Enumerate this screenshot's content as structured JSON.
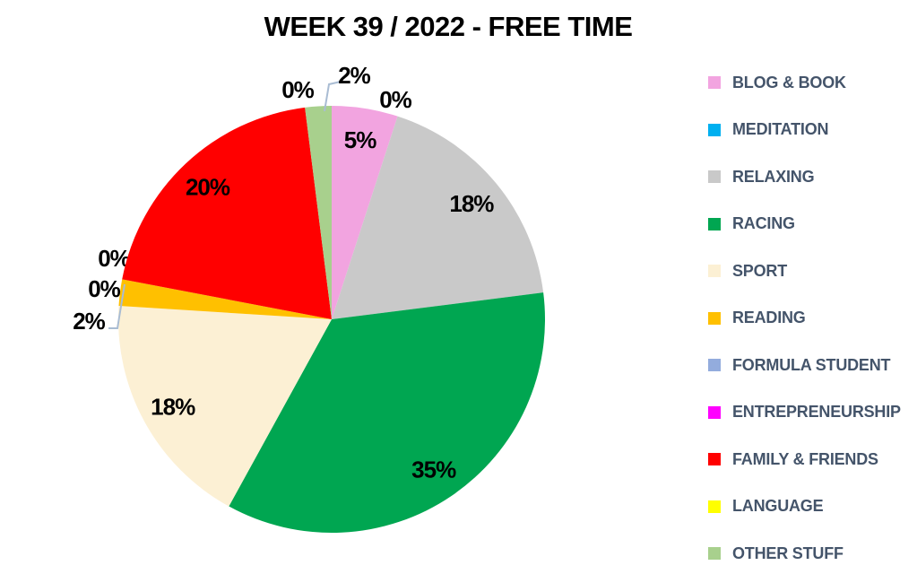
{
  "title": "WEEK 39 / 2022 - FREE TIME",
  "chart_data": {
    "type": "pie",
    "title": "WEEK 39 / 2022 - FREE TIME",
    "unit": "percent",
    "start_angle_deg": 0,
    "direction": "clockwise",
    "legend_position": "right",
    "total": 100,
    "slices": [
      {
        "label": "BLOG & BOOK",
        "value": 5,
        "display": "5%",
        "color": "#F2A4E0"
      },
      {
        "label": "MEDITATION",
        "value": 0,
        "display": "0%",
        "color": "#00B0F0"
      },
      {
        "label": "RELAXING",
        "value": 18,
        "display": "18%",
        "color": "#C9C9C9"
      },
      {
        "label": "RACING",
        "value": 35,
        "display": "35%",
        "color": "#00A651"
      },
      {
        "label": "SPORT",
        "value": 18,
        "display": "18%",
        "color": "#FCF0D4"
      },
      {
        "label": "READING",
        "value": 2,
        "display": "2%",
        "color": "#FFC000"
      },
      {
        "label": "FORMULA STUDENT",
        "value": 0,
        "display": "0%",
        "color": "#93ACDD"
      },
      {
        "label": "ENTREPRENEURSHIP",
        "value": 0,
        "display": "0%",
        "color": "#FF00FF"
      },
      {
        "label": "FAMILY & FRIENDS",
        "value": 20,
        "display": "20%",
        "color": "#FF0000"
      },
      {
        "label": "LANGUAGE",
        "value": 0,
        "display": "0%",
        "color": "#FFFF00"
      },
      {
        "label": "OTHER STUFF",
        "value": 2,
        "display": "2%",
        "color": "#A8D08D"
      }
    ]
  },
  "colors": {
    "background": "#FFFFFF",
    "title_text": "#000000",
    "label_text": "#000000",
    "legend_text": "#44546A",
    "leader_line": "#A9BCD3"
  }
}
